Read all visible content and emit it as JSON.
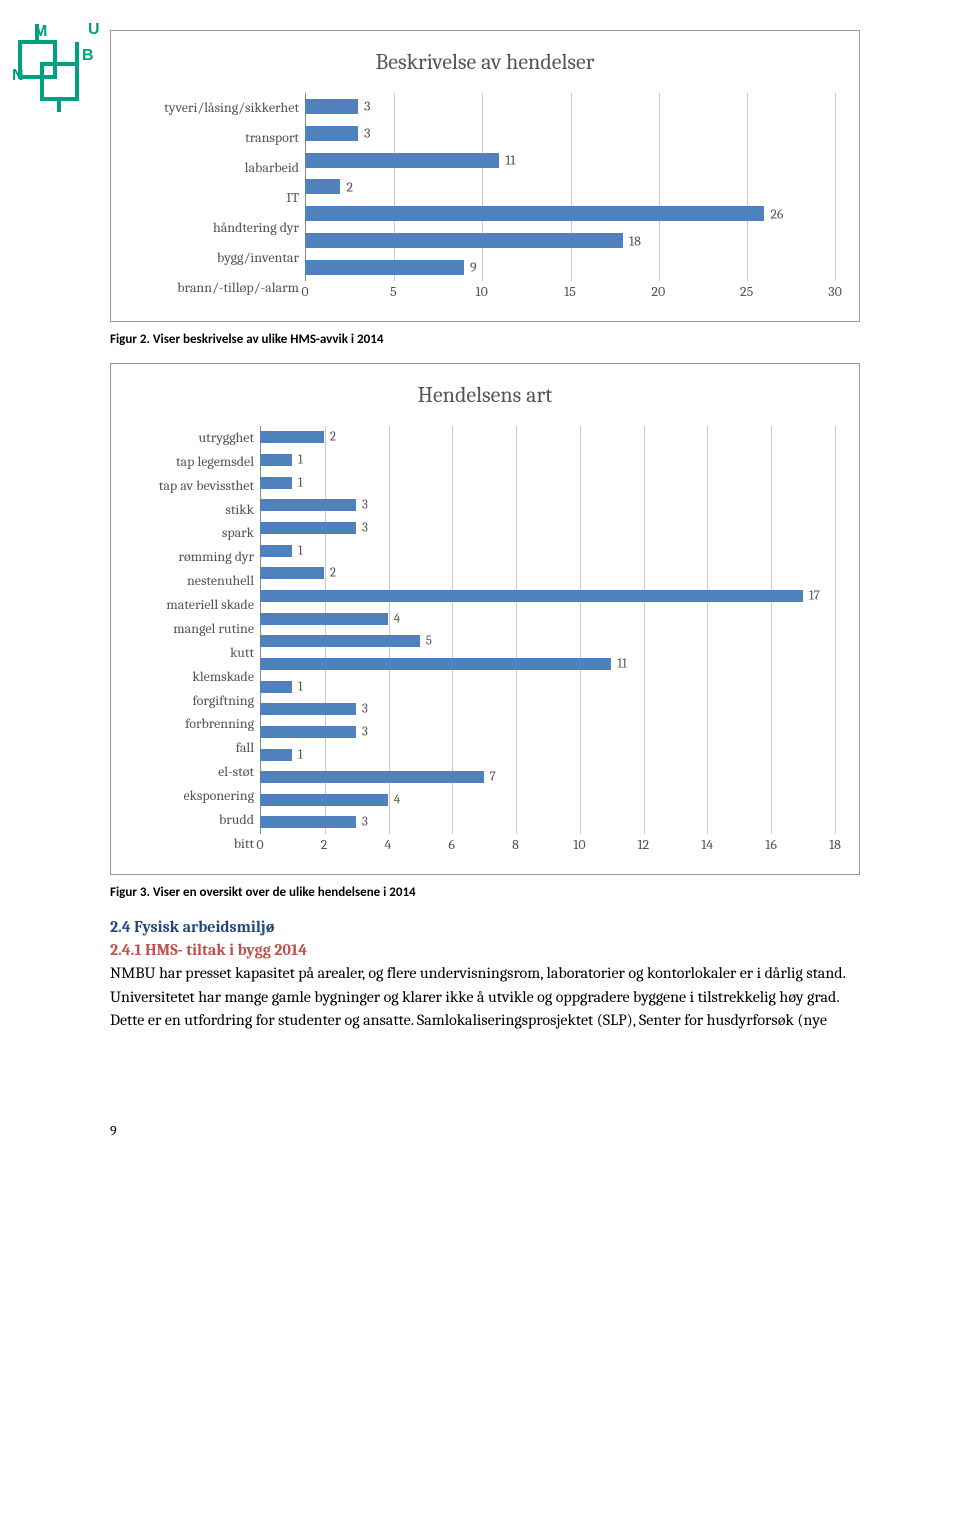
{
  "logo_color": "#00a082",
  "chart1": {
    "type": "bar",
    "title": "Beskrivelse av hendelser",
    "categories": [
      "tyveri/låsing/sikkerhet",
      "transport",
      "labarbeid",
      "IT",
      "håndtering dyr",
      "bygg/inventar",
      "brann/-tilløp/-alarm"
    ],
    "values": [
      3,
      3,
      11,
      2,
      26,
      18,
      9
    ],
    "bar_color": "#4f81bd",
    "xlim": [
      0,
      30
    ],
    "xtick_step": 5,
    "xticks": [
      0,
      5,
      10,
      15,
      20,
      25,
      30
    ],
    "grid_color": "#cccccc",
    "label_fontsize": 14,
    "title_fontsize": 22,
    "cat_width": 170
  },
  "caption1": "Figur 2. Viser beskrivelse av ulike HMS-avvik i 2014",
  "chart2": {
    "type": "bar",
    "title": "Hendelsens art",
    "categories": [
      "utrygghet",
      "tap legemsdel",
      "tap av bevissthet",
      "stikk",
      "spark",
      "rømming dyr",
      "nestenuhell",
      "materiell skade",
      "mangel rutine",
      "kutt",
      "klemskade",
      "forgiftning",
      "forbrenning",
      "fall",
      "el-støt",
      "eksponering",
      "brudd",
      "bitt"
    ],
    "values": [
      2,
      1,
      1,
      3,
      3,
      1,
      2,
      17,
      4,
      5,
      11,
      1,
      3,
      3,
      1,
      7,
      4,
      3
    ],
    "bar_color": "#4f81bd",
    "xlim": [
      0,
      18
    ],
    "xtick_step": 2,
    "xticks": [
      0,
      2,
      4,
      6,
      8,
      10,
      12,
      14,
      16,
      18
    ],
    "grid_color": "#cccccc",
    "label_fontsize": 14,
    "title_fontsize": 22,
    "cat_width": 125
  },
  "caption2": "Figur 3. Viser en oversikt over de ulike hendelsene i 2014",
  "section_heading": "2.4 Fysisk arbeidsmiljø",
  "subsection_heading": "2.4.1 HMS- tiltak i bygg 2014",
  "body": "NMBU har presset kapasitet på arealer, og flere undervisningsrom, laboratorier og kontorlokaler er i dårlig stand.  Universitetet har mange gamle bygninger og klarer ikke å utvikle og oppgradere byggene i tilstrekkelig høy grad. Dette er en utfordring for studenter og ansatte. Samlokaliseringsprosjektet (SLP), Senter for husdyrforsøk (nye",
  "page_number": "9"
}
